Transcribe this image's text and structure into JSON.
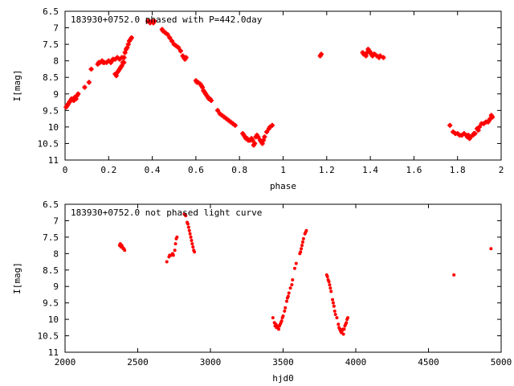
{
  "chart_data": [
    {
      "type": "scatter",
      "title": "183930+0752.0 phased with P=442.0day",
      "xlabel": "phase",
      "ylabel": "I[mag]",
      "xlim": [
        0,
        2
      ],
      "ylim": [
        6.5,
        11
      ],
      "y_inverted": true,
      "x_ticks": [
        "0",
        "0.2",
        "0.4",
        "0.6",
        "0.8",
        "1",
        "1.2",
        "1.4",
        "1.6",
        "1.8",
        "2"
      ],
      "y_ticks": [
        "6.5",
        "7",
        "7.5",
        "8",
        "8.5",
        "9",
        "9.5",
        "10",
        "10.5",
        "11"
      ],
      "marker": "plus",
      "color": "#ff0000",
      "grid": false,
      "series": [
        {
          "points": [
            [
              0.005,
              9.4
            ],
            [
              0.01,
              9.35
            ],
            [
              0.015,
              9.3
            ],
            [
              0.02,
              9.25
            ],
            [
              0.025,
              9.2
            ],
            [
              0.03,
              9.15
            ],
            [
              0.04,
              9.2
            ],
            [
              0.045,
              9.1
            ],
            [
              0.05,
              9.15
            ],
            [
              0.055,
              9.05
            ],
            [
              0.06,
              9.0
            ],
            [
              0.09,
              8.8
            ],
            [
              0.11,
              8.65
            ],
            [
              0.12,
              8.25
            ],
            [
              0.15,
              8.1
            ],
            [
              0.155,
              8.05
            ],
            [
              0.16,
              8.05
            ],
            [
              0.17,
              8.0
            ],
            [
              0.175,
              8.05
            ],
            [
              0.18,
              8.05
            ],
            [
              0.19,
              8.05
            ],
            [
              0.2,
              8.0
            ],
            [
              0.21,
              8.05
            ],
            [
              0.215,
              8.0
            ],
            [
              0.22,
              7.95
            ],
            [
              0.23,
              7.95
            ],
            [
              0.24,
              7.9
            ],
            [
              0.25,
              7.95
            ],
            [
              0.26,
              7.9
            ],
            [
              0.27,
              7.9
            ],
            [
              0.23,
              8.4
            ],
            [
              0.235,
              8.45
            ],
            [
              0.24,
              8.35
            ],
            [
              0.245,
              8.3
            ],
            [
              0.25,
              8.25
            ],
            [
              0.255,
              8.2
            ],
            [
              0.26,
              8.15
            ],
            [
              0.265,
              8.05
            ],
            [
              0.27,
              8.05
            ],
            [
              0.27,
              7.9
            ],
            [
              0.275,
              7.75
            ],
            [
              0.28,
              7.65
            ],
            [
              0.285,
              7.6
            ],
            [
              0.29,
              7.5
            ],
            [
              0.295,
              7.4
            ],
            [
              0.3,
              7.35
            ],
            [
              0.305,
              7.3
            ],
            [
              0.38,
              6.8
            ],
            [
              0.385,
              6.8
            ],
            [
              0.39,
              6.85
            ],
            [
              0.4,
              6.8
            ],
            [
              0.405,
              6.85
            ],
            [
              0.41,
              6.8
            ],
            [
              0.445,
              7.05
            ],
            [
              0.45,
              7.1
            ],
            [
              0.46,
              7.15
            ],
            [
              0.47,
              7.2
            ],
            [
              0.48,
              7.3
            ],
            [
              0.49,
              7.4
            ],
            [
              0.5,
              7.5
            ],
            [
              0.51,
              7.55
            ],
            [
              0.52,
              7.6
            ],
            [
              0.53,
              7.7
            ],
            [
              0.54,
              7.85
            ],
            [
              0.545,
              7.9
            ],
            [
              0.55,
              7.95
            ],
            [
              0.555,
              7.9
            ],
            [
              0.6,
              8.6
            ],
            [
              0.605,
              8.65
            ],
            [
              0.61,
              8.65
            ],
            [
              0.62,
              8.7
            ],
            [
              0.625,
              8.75
            ],
            [
              0.63,
              8.8
            ],
            [
              0.635,
              8.9
            ],
            [
              0.64,
              8.95
            ],
            [
              0.645,
              9.0
            ],
            [
              0.65,
              9.05
            ],
            [
              0.655,
              9.1
            ],
            [
              0.66,
              9.15
            ],
            [
              0.665,
              9.15
            ],
            [
              0.67,
              9.2
            ],
            [
              0.7,
              9.5
            ],
            [
              0.71,
              9.6
            ],
            [
              0.72,
              9.65
            ],
            [
              0.73,
              9.7
            ],
            [
              0.74,
              9.75
            ],
            [
              0.75,
              9.8
            ],
            [
              0.76,
              9.85
            ],
            [
              0.77,
              9.9
            ],
            [
              0.78,
              9.95
            ],
            [
              0.815,
              10.2
            ],
            [
              0.82,
              10.25
            ],
            [
              0.825,
              10.3
            ],
            [
              0.83,
              10.35
            ],
            [
              0.835,
              10.35
            ],
            [
              0.84,
              10.4
            ],
            [
              0.845,
              10.4
            ],
            [
              0.85,
              10.4
            ],
            [
              0.855,
              10.35
            ],
            [
              0.86,
              10.4
            ],
            [
              0.865,
              10.55
            ],
            [
              0.87,
              10.5
            ],
            [
              0.875,
              10.3
            ],
            [
              0.88,
              10.25
            ],
            [
              0.885,
              10.3
            ],
            [
              0.895,
              10.4
            ],
            [
              0.9,
              10.45
            ],
            [
              0.905,
              10.5
            ],
            [
              0.91,
              10.4
            ],
            [
              0.915,
              10.3
            ],
            [
              0.925,
              10.15
            ],
            [
              0.935,
              10.05
            ],
            [
              0.94,
              10.0
            ],
            [
              0.95,
              9.95
            ],
            [
              1.17,
              7.85
            ],
            [
              1.175,
              7.8
            ],
            [
              1.365,
              7.75
            ],
            [
              1.37,
              7.8
            ],
            [
              1.38,
              7.85
            ],
            [
              1.385,
              7.75
            ],
            [
              1.39,
              7.65
            ],
            [
              1.395,
              7.7
            ],
            [
              1.4,
              7.75
            ],
            [
              1.405,
              7.8
            ],
            [
              1.41,
              7.85
            ],
            [
              1.415,
              7.8
            ],
            [
              1.42,
              7.8
            ],
            [
              1.43,
              7.85
            ],
            [
              1.44,
              7.9
            ],
            [
              1.445,
              7.85
            ],
            [
              1.46,
              7.9
            ],
            [
              1.765,
              9.95
            ],
            [
              1.78,
              10.15
            ],
            [
              1.79,
              10.2
            ],
            [
              1.8,
              10.2
            ],
            [
              1.81,
              10.25
            ],
            [
              1.82,
              10.25
            ],
            [
              1.83,
              10.2
            ],
            [
              1.84,
              10.25
            ],
            [
              1.845,
              10.3
            ],
            [
              1.85,
              10.25
            ],
            [
              1.855,
              10.35
            ],
            [
              1.86,
              10.3
            ],
            [
              1.87,
              10.25
            ],
            [
              1.875,
              10.2
            ],
            [
              1.88,
              10.2
            ],
            [
              1.89,
              10.05
            ],
            [
              1.895,
              10.1
            ],
            [
              1.9,
              10.0
            ],
            [
              1.91,
              9.9
            ],
            [
              1.92,
              9.9
            ],
            [
              1.93,
              9.85
            ],
            [
              1.94,
              9.85
            ],
            [
              1.945,
              9.8
            ],
            [
              1.95,
              9.75
            ],
            [
              1.955,
              9.65
            ],
            [
              1.96,
              9.7
            ]
          ]
        }
      ]
    },
    {
      "type": "scatter",
      "title": "183930+0752.0 not phased light curve",
      "xlabel": "hjd0",
      "ylabel": "I[mag]",
      "xlim": [
        2000,
        5000
      ],
      "ylim": [
        6.5,
        11
      ],
      "y_inverted": true,
      "x_ticks": [
        "2000",
        "2500",
        "3000",
        "3500",
        "4000",
        "4500",
        "5000"
      ],
      "y_ticks": [
        "6.5",
        "7",
        "7.5",
        "8",
        "8.5",
        "9",
        "9.5",
        "10",
        "10.5",
        "11"
      ],
      "marker": "dot",
      "color": "#ff0000",
      "grid": false,
      "series": [
        {
          "points": [
            [
              2375,
              7.75
            ],
            [
              2380,
              7.7
            ],
            [
              2385,
              7.8
            ],
            [
              2390,
              7.75
            ],
            [
              2395,
              7.8
            ],
            [
              2400,
              7.85
            ],
            [
              2405,
              7.85
            ],
            [
              2410,
              7.9
            ],
            [
              2700,
              8.25
            ],
            [
              2715,
              8.1
            ],
            [
              2720,
              8.05
            ],
            [
              2730,
              8.05
            ],
            [
              2740,
              8.0
            ],
            [
              2745,
              8.05
            ],
            [
              2755,
              7.9
            ],
            [
              2760,
              7.7
            ],
            [
              2765,
              7.55
            ],
            [
              2770,
              7.5
            ],
            [
              2820,
              6.8
            ],
            [
              2830,
              6.85
            ],
            [
              2840,
              7.05
            ],
            [
              2845,
              7.1
            ],
            [
              2850,
              7.2
            ],
            [
              2855,
              7.3
            ],
            [
              2860,
              7.4
            ],
            [
              2865,
              7.5
            ],
            [
              2870,
              7.6
            ],
            [
              2875,
              7.7
            ],
            [
              2880,
              7.8
            ],
            [
              2885,
              7.9
            ],
            [
              2890,
              7.95
            ],
            [
              3430,
              9.95
            ],
            [
              3440,
              10.1
            ],
            [
              3445,
              10.2
            ],
            [
              3450,
              10.15
            ],
            [
              3455,
              10.25
            ],
            [
              3460,
              10.2
            ],
            [
              3465,
              10.25
            ],
            [
              3470,
              10.3
            ],
            [
              3475,
              10.2
            ],
            [
              3480,
              10.15
            ],
            [
              3485,
              10.1
            ],
            [
              3490,
              10.05
            ],
            [
              3495,
              9.95
            ],
            [
              3500,
              9.9
            ],
            [
              3510,
              9.75
            ],
            [
              3515,
              9.65
            ],
            [
              3525,
              9.45
            ],
            [
              3530,
              9.35
            ],
            [
              3535,
              9.3
            ],
            [
              3540,
              9.2
            ],
            [
              3550,
              9.05
            ],
            [
              3560,
              8.95
            ],
            [
              3565,
              8.8
            ],
            [
              3580,
              8.45
            ],
            [
              3590,
              8.3
            ],
            [
              3615,
              8.0
            ],
            [
              3620,
              7.95
            ],
            [
              3625,
              7.85
            ],
            [
              3630,
              7.75
            ],
            [
              3635,
              7.65
            ],
            [
              3640,
              7.55
            ],
            [
              3650,
              7.4
            ],
            [
              3655,
              7.35
            ],
            [
              3660,
              7.3
            ],
            [
              3800,
              8.65
            ],
            [
              3805,
              8.7
            ],
            [
              3810,
              8.8
            ],
            [
              3815,
              8.85
            ],
            [
              3820,
              8.95
            ],
            [
              3825,
              9.05
            ],
            [
              3830,
              9.15
            ],
            [
              3840,
              9.4
            ],
            [
              3845,
              9.5
            ],
            [
              3850,
              9.6
            ],
            [
              3855,
              9.75
            ],
            [
              3860,
              9.85
            ],
            [
              3870,
              9.95
            ],
            [
              3880,
              10.15
            ],
            [
              3885,
              10.25
            ],
            [
              3890,
              10.3
            ],
            [
              3895,
              10.35
            ],
            [
              3900,
              10.4
            ],
            [
              3905,
              10.35
            ],
            [
              3910,
              10.3
            ],
            [
              3915,
              10.45
            ],
            [
              3920,
              10.3
            ],
            [
              3925,
              10.2
            ],
            [
              3930,
              10.15
            ],
            [
              3935,
              10.1
            ],
            [
              3940,
              10.0
            ],
            [
              3945,
              9.95
            ],
            [
              4675,
              8.65
            ],
            [
              4930,
              7.85
            ]
          ]
        }
      ]
    }
  ]
}
